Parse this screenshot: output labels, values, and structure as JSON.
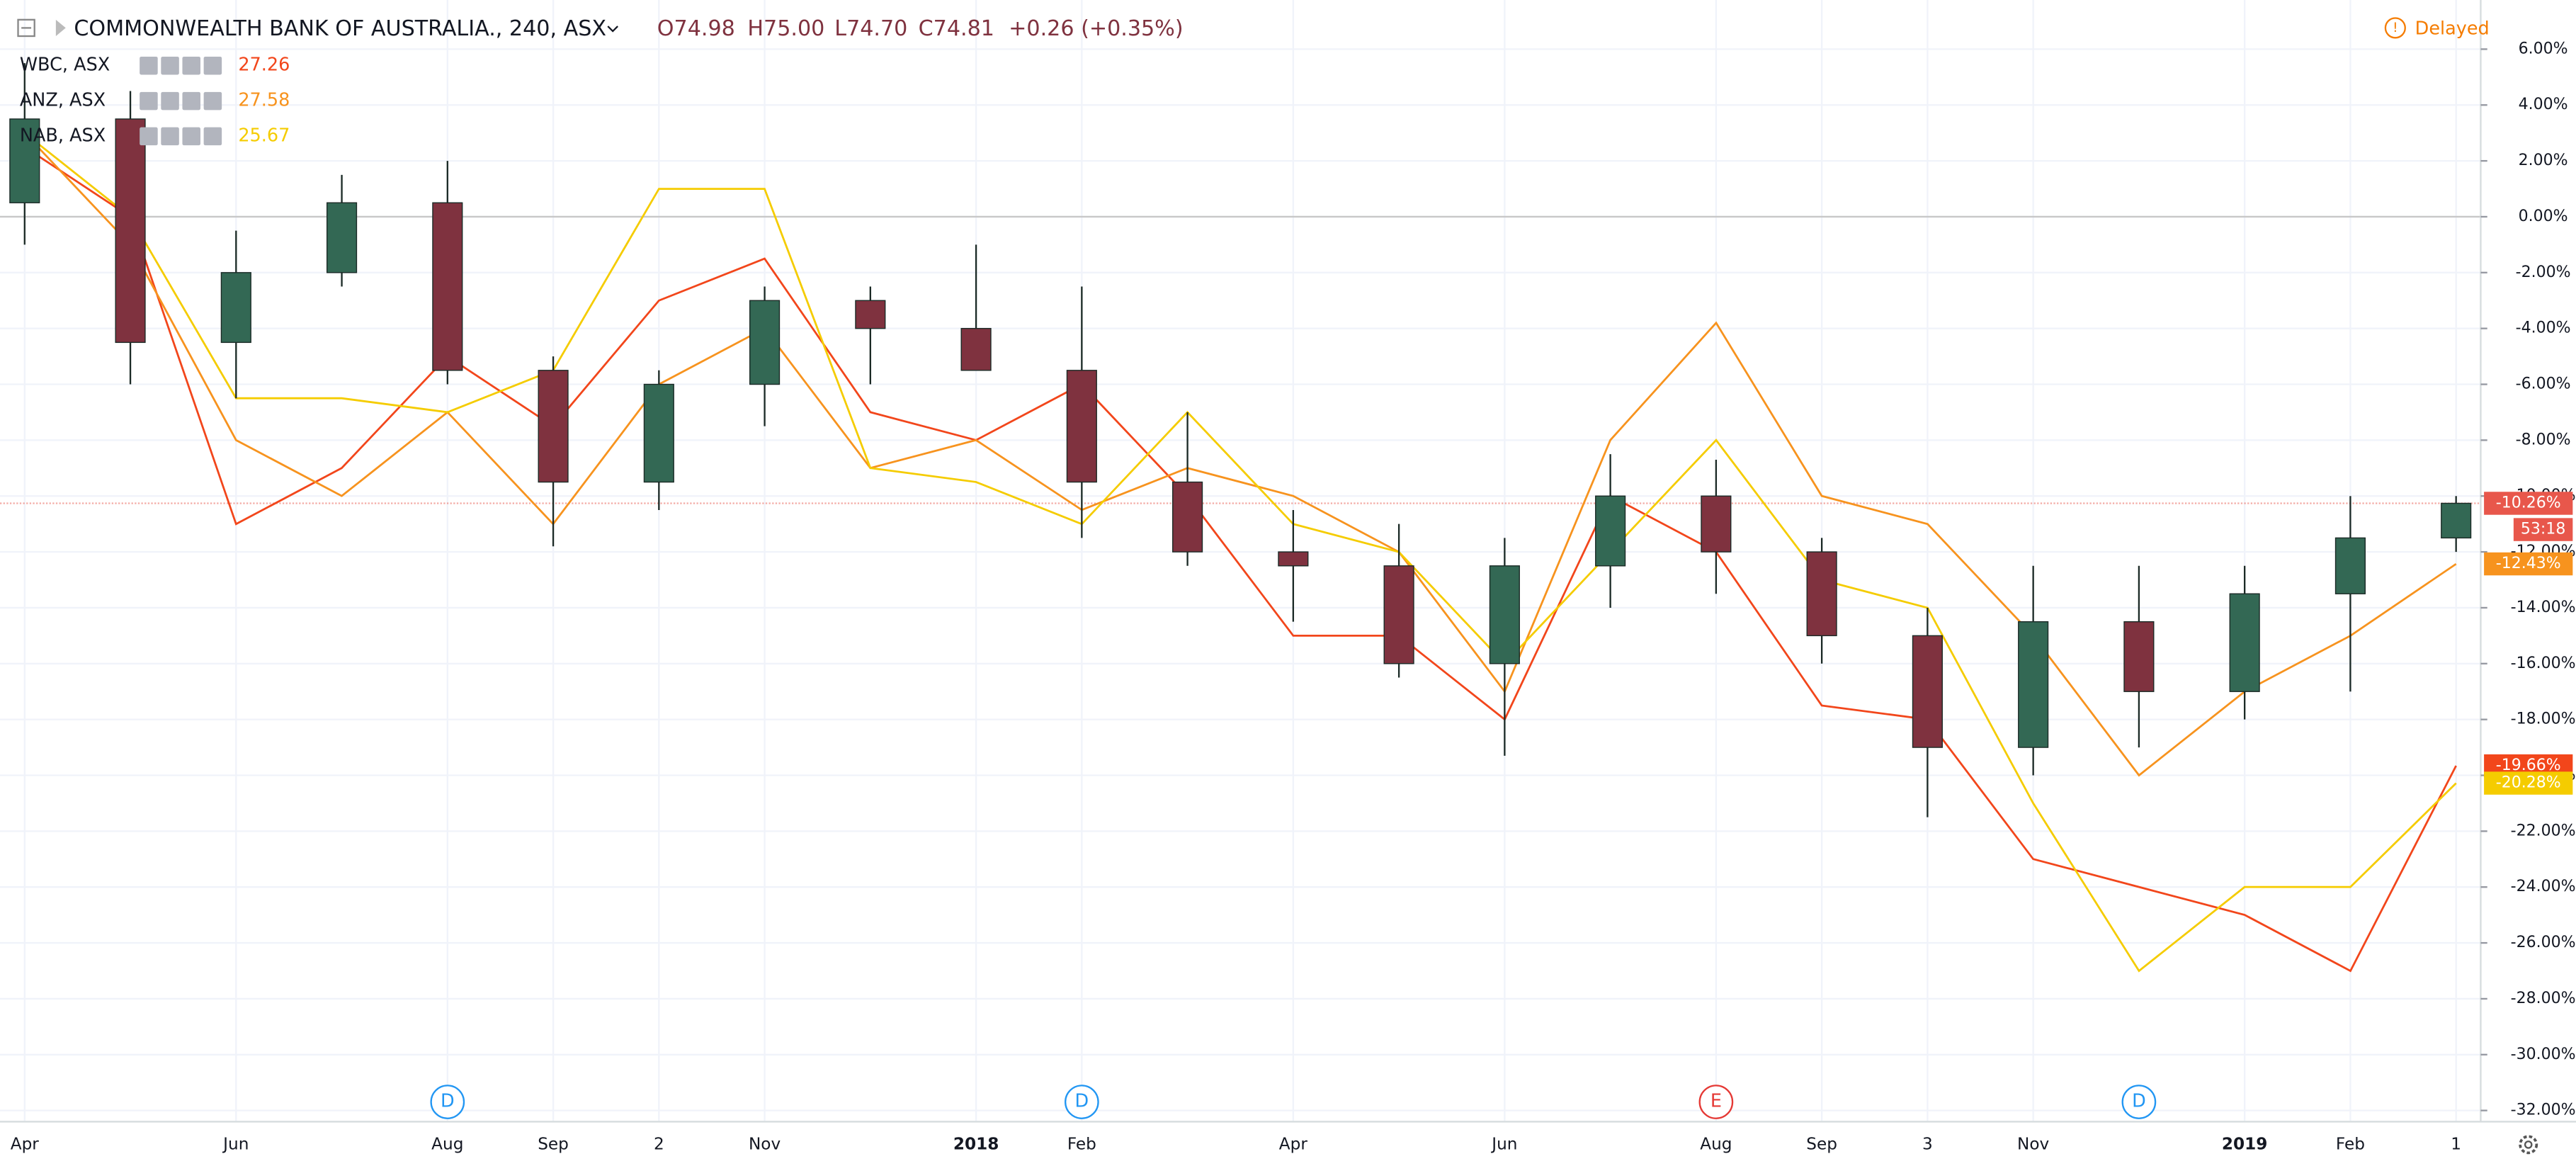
{
  "chart_data": {
    "type": "candlestick",
    "title": "COMMONWEALTH BANK OF AUSTRALIA., 240, ASX",
    "ohlc": [
      "O74.98",
      "H75.00",
      "L74.70",
      "C74.81"
    ],
    "change": "+0.26 (+0.35%)",
    "status": "Delayed",
    "countdown": "53:18",
    "x": [
      "2017-04",
      "2017-05",
      "2017-06",
      "2017-07",
      "2017-08",
      "2017-09",
      "2017-10",
      "2017-11",
      "2017-12",
      "2018-01",
      "2018-02",
      "2018-03",
      "2018-04",
      "2018-05",
      "2018-06",
      "2018-07",
      "2018-08",
      "2018-09",
      "2018-10",
      "2018-11",
      "2018-12",
      "2019-01",
      "2019-02",
      "2019-03"
    ],
    "open": [
      0.5,
      3.5,
      -4.5,
      -2,
      0.5,
      -5.5,
      -9.5,
      -6,
      -3,
      -4,
      -5.5,
      -9.5,
      -12,
      -12.5,
      -16,
      -12.5,
      -10,
      -12,
      -15,
      -19,
      -14.5,
      -17,
      -13.5,
      -11.5
    ],
    "high": [
      5.5,
      4.5,
      -0.5,
      1.5,
      2,
      -5,
      -5.5,
      -2.5,
      -2.5,
      -1,
      -2.5,
      -7,
      -10.5,
      -11,
      -11.5,
      -8.5,
      -8.7,
      -11.5,
      -14,
      -12.5,
      -12.5,
      -12.5,
      -10,
      -10
    ],
    "low": [
      -1,
      -6,
      -6.5,
      -2.5,
      -6,
      -11.8,
      -10.5,
      -7.5,
      -6,
      -5.5,
      -11.5,
      -12.5,
      -14.5,
      -16.5,
      -19.3,
      -14,
      -13.5,
      -16,
      -21.5,
      -20,
      -19,
      -18,
      -17,
      -12
    ],
    "close": [
      3.5,
      -4.5,
      -2,
      0.5,
      -5.5,
      -9.5,
      -6,
      -3,
      -4,
      -5.5,
      -9.5,
      -12,
      -12.5,
      -16,
      -12.5,
      -10,
      -12,
      -15,
      -19,
      -14.5,
      -17,
      -13.5,
      -11.5,
      -10.26
    ],
    "up_color": "#336854",
    "down_color": "#7f323f",
    "last_label": {
      "value": -10.26,
      "label": "-10.26%"
    },
    "label_color": "#e8574b",
    "series": [
      {
        "name": "WBC, ASX",
        "price": 27.26,
        "color": "#f2461b",
        "values": [
          2.5,
          0,
          -11,
          -9,
          -5,
          -7.5,
          -3,
          -1.5,
          -7,
          -8,
          -6,
          -10,
          -15,
          -15,
          -18,
          -10,
          -12,
          -17.5,
          -18,
          -23,
          -24,
          -25,
          -27,
          -19.66
        ],
        "last_label": {
          "value": -19.66,
          "label": "-19.66%"
        }
      },
      {
        "name": "ANZ, ASX",
        "price": 27.58,
        "color": "#f7931e",
        "values": [
          3,
          -1,
          -8,
          -10,
          -7,
          -11,
          -6,
          -4,
          -9,
          -8,
          -10.5,
          -9,
          -10,
          -12,
          -17,
          -8,
          -3.8,
          -10,
          -11,
          -15,
          -20,
          -17,
          -15,
          -12.43
        ],
        "last_label": {
          "value": -12.43,
          "label": "-12.43%"
        }
      },
      {
        "name": "NAB, ASX",
        "price": 25.67,
        "color": "#f5cc00",
        "values": [
          3,
          0,
          -6.5,
          -6.5,
          -7,
          -5.5,
          1,
          1,
          -9,
          -9.5,
          -11,
          -7,
          -11,
          -12,
          -16,
          -12,
          -8,
          -13,
          -14,
          -21,
          -27,
          -24,
          -24,
          -20.28
        ],
        "last_label": {
          "value": -20.28,
          "label": "-20.28%"
        }
      }
    ],
    "events": [
      {
        "label": "D",
        "x": "2017-08",
        "color": "#2196f3"
      },
      {
        "label": "D",
        "x": "2018-02",
        "color": "#2196f3"
      },
      {
        "label": "E",
        "x": "2018-08",
        "color": "#e53935"
      },
      {
        "label": "D",
        "x": "2018-12",
        "color": "#2196f3"
      }
    ],
    "xlim": [
      "2017-04",
      "2019-03"
    ],
    "xticks": [
      {
        "value": "2017-04",
        "label": "Apr"
      },
      {
        "value": "2017-06",
        "label": "Jun"
      },
      {
        "value": "2017-08",
        "label": "Aug"
      },
      {
        "value": "2017-09",
        "label": "Sep"
      },
      {
        "value": "2017-10",
        "label": "2"
      },
      {
        "value": "2017-11",
        "label": "Nov"
      },
      {
        "value": "2018-01",
        "label": "2018"
      },
      {
        "value": "2018-02",
        "label": "Feb"
      },
      {
        "value": "2018-04",
        "label": "Apr"
      },
      {
        "value": "2018-06",
        "label": "Jun"
      },
      {
        "value": "2018-08",
        "label": "Aug"
      },
      {
        "value": "2018-09",
        "label": "Sep"
      },
      {
        "value": "2018-10",
        "label": "3"
      },
      {
        "value": "2018-11",
        "label": "Nov"
      },
      {
        "value": "2019-01",
        "label": "2019"
      },
      {
        "value": "2019-02",
        "label": "Feb"
      },
      {
        "value": "2019-03",
        "label": "1"
      }
    ],
    "ylim": [
      -32.4,
      7.76
    ],
    "yticks": [
      {
        "value": 6,
        "label": "6.00%"
      },
      {
        "value": 4,
        "label": "4.00%"
      },
      {
        "value": 2,
        "label": "2.00%"
      },
      {
        "value": 0,
        "label": "0.00%"
      },
      {
        "value": -2,
        "label": "-2.00%"
      },
      {
        "value": -4,
        "label": "-4.00%"
      },
      {
        "value": -6,
        "label": "-6.00%"
      },
      {
        "value": -8,
        "label": "-8.00%"
      },
      {
        "value": -10,
        "label": "-10.00%"
      },
      {
        "value": -12,
        "label": "-12.00%"
      },
      {
        "value": -14,
        "label": "-14.00%"
      },
      {
        "value": -16,
        "label": "-16.00%"
      },
      {
        "value": -18,
        "label": "-18.00%"
      },
      {
        "value": -20,
        "label": "-20.00%"
      },
      {
        "value": -22,
        "label": "-22.00%"
      },
      {
        "value": -24,
        "label": "-24.00%"
      },
      {
        "value": -26,
        "label": "-26.00%"
      },
      {
        "value": -28,
        "label": "-28.00%"
      },
      {
        "value": -30,
        "label": "-30.00%"
      },
      {
        "value": -32,
        "label": "-32.00%"
      }
    ],
    "grid": true
  }
}
